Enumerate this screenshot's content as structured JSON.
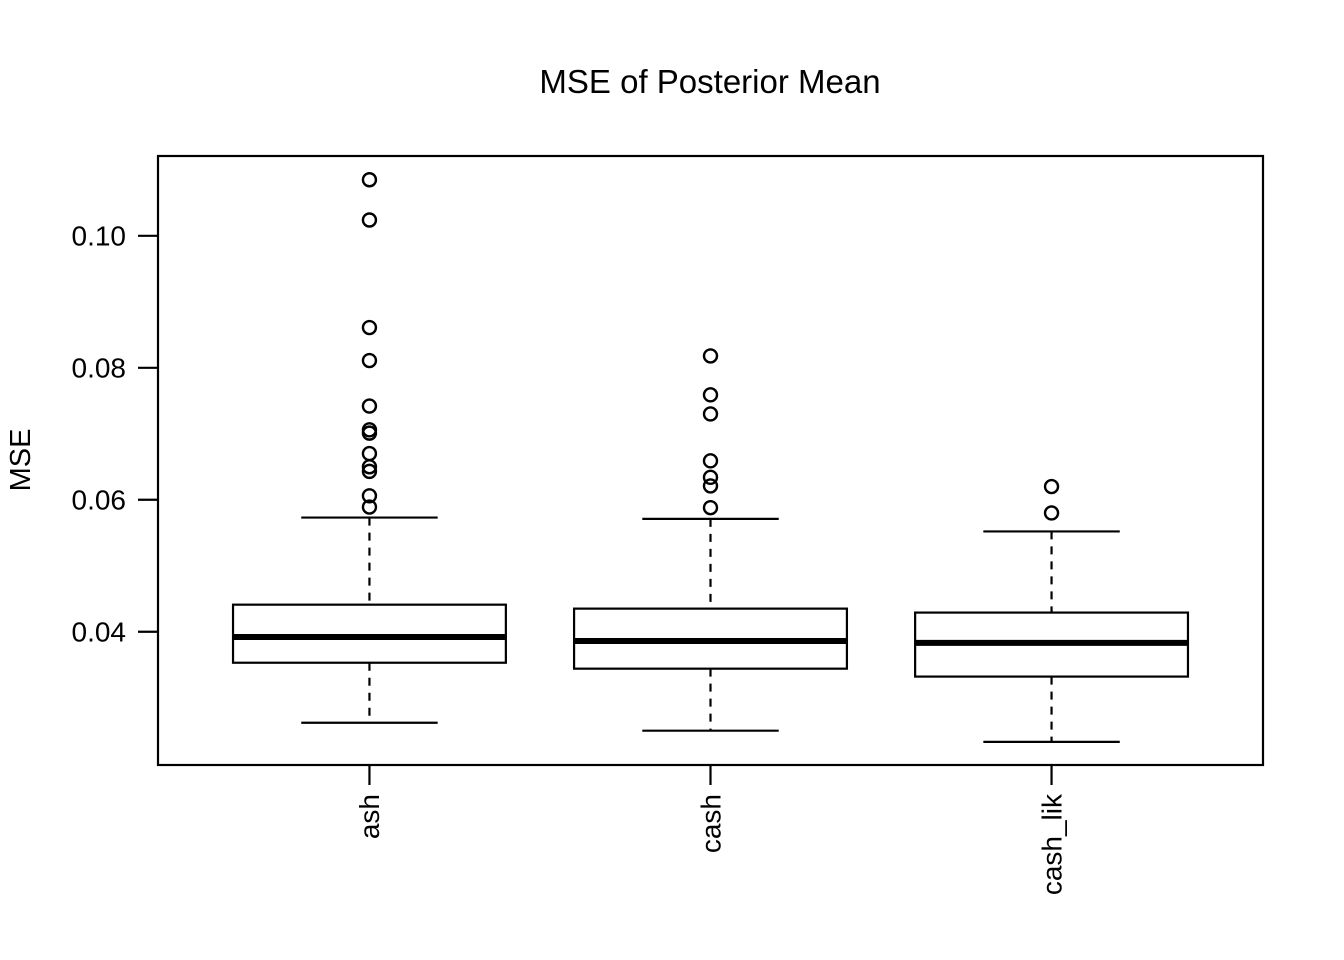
{
  "figure": {
    "background_color": "#ffffff",
    "stroke_color": "#000000"
  },
  "chart_data": {
    "type": "boxplot",
    "title": "MSE of Posterior Mean",
    "xlabel": "",
    "ylabel": "MSE",
    "categories": [
      "ash",
      "cash",
      "cash_lik"
    ],
    "y_ticks": [
      0.04,
      0.06,
      0.08,
      0.1
    ],
    "y_tick_labels": [
      "0.04",
      "0.06",
      "0.08",
      "0.10"
    ],
    "ylim": [
      0.0198,
      0.1121
    ],
    "grid": "off",
    "legend": "none",
    "whisker_line_style": "dashed",
    "groups": [
      {
        "name": "ash",
        "lower_whisker": 0.0262,
        "q1": 0.0353,
        "median": 0.0392,
        "q3": 0.0441,
        "upper_whisker": 0.0573,
        "outliers": [
          0.1085,
          0.1024,
          0.0861,
          0.0811,
          0.0742,
          0.0706,
          0.0701,
          0.067,
          0.065,
          0.0643,
          0.0606,
          0.0589
        ]
      },
      {
        "name": "cash",
        "lower_whisker": 0.025,
        "q1": 0.0344,
        "median": 0.0386,
        "q3": 0.0435,
        "upper_whisker": 0.0571,
        "outliers": [
          0.0818,
          0.0759,
          0.073,
          0.0659,
          0.0634,
          0.0621,
          0.0588
        ]
      },
      {
        "name": "cash_lik",
        "lower_whisker": 0.0233,
        "q1": 0.0332,
        "median": 0.0383,
        "q3": 0.0429,
        "upper_whisker": 0.0552,
        "outliers": [
          0.062,
          0.058
        ]
      }
    ]
  }
}
